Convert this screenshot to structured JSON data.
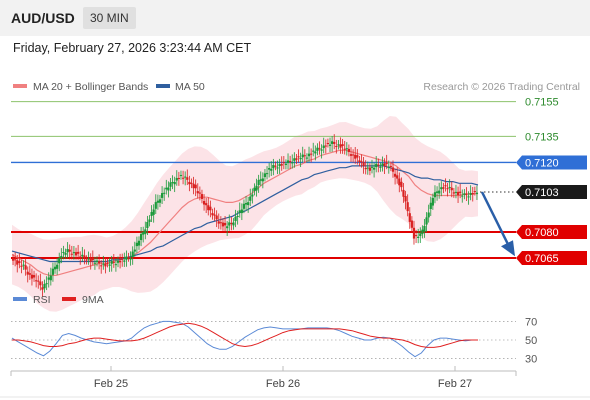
{
  "header": {
    "symbol": "AUD/USD",
    "timeframe": "30 MIN"
  },
  "date_line": "Friday, February 27, 2026 3:23:44 AM CET",
  "legend": {
    "ma20": "MA 20 + Bollinger Bands",
    "ma50": "MA 50",
    "credit": "Research © 2026 Trading Central",
    "rsi": "RSI",
    "ma9": "9MA"
  },
  "colors": {
    "ma20": "#f08080",
    "ma50": "#2f5f9f",
    "bands": "#fbd9df",
    "support": "#e00000",
    "resistance_green": "#8dc26b",
    "pivot_blue": "#2f6fd6",
    "bull_candle": "#1a9a3a",
    "bear_candle": "#d92020",
    "rsi_line": "#5b8ad6",
    "ma9_line": "#e02020",
    "forecast_arrow": "#2a5fa8"
  },
  "chart_data": [
    {
      "type": "line",
      "title": "AUD/USD 30 MIN",
      "x_tick_labels": [
        "Feb 25",
        "Feb 26",
        "Feb 27"
      ],
      "ylim": [
        0.7042,
        0.7164
      ],
      "levels": [
        {
          "value": 0.7155,
          "label": "0.7155",
          "kind": "resistance"
        },
        {
          "value": 0.7135,
          "label": "0.7135",
          "kind": "resistance"
        },
        {
          "value": 0.712,
          "label": "0.7120",
          "kind": "pivot"
        },
        {
          "value": 0.7103,
          "label": "0.7103",
          "kind": "last_price"
        },
        {
          "value": 0.708,
          "label": "0.7080",
          "kind": "support"
        },
        {
          "value": 0.7065,
          "label": "0.7065",
          "kind": "support"
        }
      ],
      "last_price": 0.7103,
      "forecast": "down",
      "series": [
        {
          "name": "Price",
          "values": [
            0.7066,
            0.7062,
            0.706,
            0.7055,
            0.7052,
            0.7048,
            0.7053,
            0.706,
            0.7067,
            0.7069,
            0.7068,
            0.7066,
            0.7065,
            0.7063,
            0.7062,
            0.7061,
            0.7062,
            0.7063,
            0.7064,
            0.7066,
            0.7073,
            0.708,
            0.7088,
            0.7096,
            0.7102,
            0.7106,
            0.711,
            0.7112,
            0.711,
            0.7106,
            0.7101,
            0.7095,
            0.709,
            0.7086,
            0.7083,
            0.7085,
            0.709,
            0.7095,
            0.71,
            0.7107,
            0.7112,
            0.7116,
            0.7118,
            0.7119,
            0.712,
            0.7122,
            0.7123,
            0.7124,
            0.7126,
            0.7128,
            0.713,
            0.7131,
            0.713,
            0.7128,
            0.7125,
            0.7122,
            0.7118,
            0.7116,
            0.7118,
            0.7119,
            0.7118,
            0.7113,
            0.7105,
            0.7092,
            0.7077,
            0.7078,
            0.7088,
            0.71,
            0.7105,
            0.7106,
            0.7104,
            0.7102,
            0.7101,
            0.7102,
            0.7103
          ]
        },
        {
          "name": "MA 20",
          "values": [
            0.7067,
            0.7065,
            0.7063,
            0.7061,
            0.7058,
            0.7056,
            0.7055,
            0.7055,
            0.7056,
            0.7057,
            0.7058,
            0.7059,
            0.706,
            0.7061,
            0.7062,
            0.7062,
            0.7063,
            0.7064,
            0.7065,
            0.7066,
            0.7068,
            0.7071,
            0.7074,
            0.7078,
            0.7082,
            0.7086,
            0.709,
            0.7094,
            0.7097,
            0.7099,
            0.71,
            0.71,
            0.7099,
            0.7098,
            0.7097,
            0.7097,
            0.7098,
            0.71,
            0.7102,
            0.7105,
            0.7108,
            0.711,
            0.7112,
            0.7114,
            0.7116,
            0.7118,
            0.7119,
            0.7121,
            0.7122,
            0.7124,
            0.7125,
            0.7126,
            0.7127,
            0.7127,
            0.7126,
            0.7125,
            0.7124,
            0.7123,
            0.7122,
            0.7121,
            0.712,
            0.7118,
            0.7115,
            0.7112,
            0.7107,
            0.7104,
            0.7102,
            0.7101,
            0.7101,
            0.7101,
            0.7101,
            0.7101,
            0.7102,
            0.7102,
            0.7102
          ]
        },
        {
          "name": "MA 50",
          "values": [
            0.7069,
            0.7068,
            0.7067,
            0.7066,
            0.7065,
            0.7064,
            0.7063,
            0.7063,
            0.7063,
            0.7063,
            0.7063,
            0.7063,
            0.7063,
            0.7063,
            0.7063,
            0.7063,
            0.7064,
            0.7064,
            0.7065,
            0.7066,
            0.7067,
            0.7068,
            0.7069,
            0.7071,
            0.7072,
            0.7074,
            0.7076,
            0.7078,
            0.708,
            0.7082,
            0.7083,
            0.7085,
            0.7086,
            0.7087,
            0.7088,
            0.7089,
            0.7091,
            0.7092,
            0.7094,
            0.7096,
            0.7098,
            0.71,
            0.7102,
            0.7104,
            0.7106,
            0.7108,
            0.711,
            0.7111,
            0.7113,
            0.7114,
            0.7115,
            0.7116,
            0.7117,
            0.7117,
            0.7118,
            0.7118,
            0.7118,
            0.7118,
            0.7118,
            0.7118,
            0.7117,
            0.7116,
            0.7115,
            0.7114,
            0.7112,
            0.7111,
            0.7111,
            0.711,
            0.711,
            0.7109,
            0.7109,
            0.7108,
            0.7108,
            0.7108,
            0.7107
          ]
        }
      ]
    },
    {
      "type": "line",
      "title": "RSI",
      "ylim": [
        22,
        78
      ],
      "y_ticks": [
        70,
        50,
        30
      ],
      "series": [
        {
          "name": "RSI",
          "values": [
            52,
            48,
            44,
            40,
            36,
            33,
            38,
            46,
            55,
            57,
            55,
            52,
            50,
            48,
            47,
            46,
            47,
            48,
            49,
            52,
            58,
            63,
            66,
            68,
            70,
            70,
            69,
            68,
            64,
            58,
            52,
            46,
            42,
            40,
            40,
            43,
            48,
            53,
            57,
            61,
            63,
            64,
            63,
            62,
            62,
            62,
            62,
            63,
            63,
            63,
            63,
            62,
            60,
            57,
            54,
            52,
            50,
            50,
            52,
            53,
            52,
            48,
            43,
            37,
            32,
            36,
            44,
            50,
            52,
            52,
            51,
            50,
            49,
            50,
            50
          ]
        },
        {
          "name": "9MA",
          "values": [
            50,
            50,
            49,
            48,
            46,
            44,
            43,
            43,
            44,
            46,
            47,
            49,
            51,
            52,
            52,
            51,
            50,
            49,
            49,
            49,
            50,
            52,
            55,
            58,
            61,
            64,
            66,
            67,
            68,
            67,
            65,
            62,
            58,
            54,
            50,
            46,
            44,
            43,
            44,
            46,
            49,
            52,
            55,
            58,
            60,
            61,
            62,
            62,
            62,
            62,
            62,
            62,
            62,
            61,
            60,
            58,
            56,
            54,
            53,
            52,
            52,
            51,
            50,
            48,
            45,
            43,
            42,
            42,
            43,
            45,
            47,
            49,
            50,
            50,
            50
          ]
        }
      ]
    }
  ]
}
